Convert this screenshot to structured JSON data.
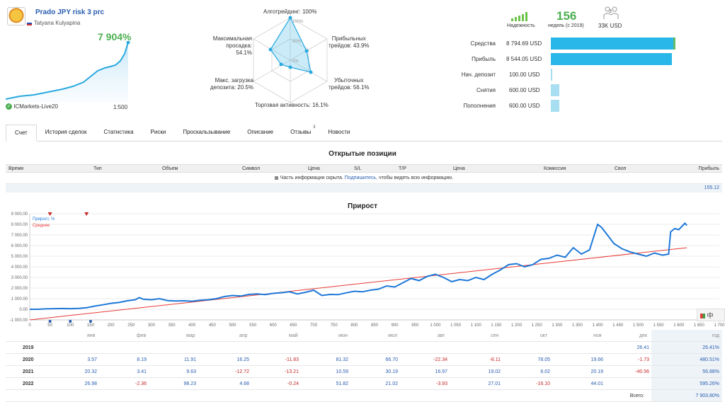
{
  "header": {
    "signal_name": "Prado JPY risk 3 prc",
    "author": "Tatyana Kulyapina",
    "growth": "7 904%",
    "broker": "ICMarkets-Live20",
    "leverage": "1:500"
  },
  "radar": {
    "algo": "Алготрейдинг: 100%",
    "max_drawdown": "Максимальная просадка: 54.1%",
    "max_drawdown_l1": "Максимальная",
    "max_drawdown_l2": "просадка: 54.1%",
    "profit_trades_l1": "Прибыльных",
    "profit_trades_l2": "трейдов: 43.9%",
    "deposit_load_l1": "Макс. загрузка",
    "deposit_load_l2": "депозита: 20.5%",
    "loss_trades_l1": "Убыточных",
    "loss_trades_l2": "трейдов: 56.1%",
    "activity": "Торговая активность: 16.1%",
    "tick_100": "100%",
    "tick_50": "50%",
    "tick_0": "0%"
  },
  "stats": {
    "reliability_label": "Надежность",
    "weeks_value": "156",
    "weeks_label": "недель (с 2019)",
    "subscribers_count": "3",
    "subscribers_label": "33K USD"
  },
  "balance_bars": [
    {
      "label": "Средства",
      "value": "8 794.69 USD",
      "fraction": 1.0
    },
    {
      "label": "Прибыль",
      "value": "8 544.05 USD",
      "fraction": 0.97
    },
    {
      "label": "Нач. депозит",
      "value": "100.00 USD",
      "fraction": 0.011
    },
    {
      "label": "Снятия",
      "value": "600.00 USD",
      "fraction": 0.068
    },
    {
      "label": "Пополнения",
      "value": "600.00 USD",
      "fraction": 0.068
    }
  ],
  "tabs": [
    "Счет",
    "История сделок",
    "Статистика",
    "Риски",
    "Проскальзывание",
    "Описание",
    "Отзывы",
    "Новости"
  ],
  "reviews_badge": "3",
  "open_positions": {
    "title": "Открытые позиции",
    "columns": [
      "Время",
      "Тип",
      "Объем",
      "Символ",
      "Цена",
      "S/L",
      "T/P",
      "Цена",
      "Комиссия",
      "Своп",
      "Прибыль"
    ],
    "hidden_prefix": "Часть информации скрыта.",
    "hidden_link": "Подпишитесь,",
    "hidden_suffix": "чтобы видеть всю информацию.",
    "total": "155.12"
  },
  "chart_title": "Прирост",
  "chart_data": {
    "type": "line",
    "title": "Прирост",
    "series": [
      {
        "name": "Прирост, %",
        "color": "#1e78d8"
      },
      {
        "name": "Среднее",
        "color": "#e53935"
      }
    ],
    "legend_labels": [
      "Прирост, %",
      "Среднее"
    ],
    "ylim": [
      -1000,
      9000
    ],
    "xlim": [
      0,
      1700
    ],
    "y_ticks": [
      "9 000.00",
      "8 000.00",
      "7 000.00",
      "6 000.00",
      "5 000.00",
      "4 000.00",
      "3 000.00",
      "2 000.00",
      "1 000.00",
      "0.00",
      "-1 000.00"
    ],
    "x_ticks": [
      "0",
      "50",
      "100",
      "150",
      "200",
      "250",
      "300",
      "350",
      "400",
      "450",
      "500",
      "550",
      "600",
      "650",
      "700",
      "750",
      "800",
      "850",
      "900",
      "950",
      "1 000",
      "1 050",
      "1 100",
      "1 150",
      "1 200",
      "1 250",
      "1 300",
      "1 350",
      "1 400",
      "1 450",
      "1 500",
      "1 550",
      "1 600",
      "1 650",
      "1 700"
    ],
    "growth_points": [
      [
        0,
        0
      ],
      [
        20,
        0
      ],
      [
        40,
        40
      ],
      [
        60,
        60
      ],
      [
        80,
        70
      ],
      [
        100,
        60
      ],
      [
        120,
        90
      ],
      [
        140,
        150
      ],
      [
        160,
        300
      ],
      [
        180,
        420
      ],
      [
        200,
        560
      ],
      [
        220,
        640
      ],
      [
        240,
        800
      ],
      [
        260,
        900
      ],
      [
        270,
        1100
      ],
      [
        280,
        950
      ],
      [
        300,
        900
      ],
      [
        320,
        1000
      ],
      [
        340,
        820
      ],
      [
        360,
        780
      ],
      [
        380,
        800
      ],
      [
        400,
        760
      ],
      [
        420,
        850
      ],
      [
        440,
        900
      ],
      [
        460,
        1000
      ],
      [
        480,
        1200
      ],
      [
        500,
        1300
      ],
      [
        520,
        1250
      ],
      [
        540,
        1400
      ],
      [
        560,
        1450
      ],
      [
        580,
        1380
      ],
      [
        600,
        1500
      ],
      [
        620,
        1560
      ],
      [
        640,
        1650
      ],
      [
        660,
        1450
      ],
      [
        680,
        1600
      ],
      [
        700,
        1800
      ],
      [
        720,
        1300
      ],
      [
        740,
        1400
      ],
      [
        760,
        1380
      ],
      [
        780,
        1550
      ],
      [
        800,
        1700
      ],
      [
        820,
        1650
      ],
      [
        840,
        1800
      ],
      [
        860,
        1900
      ],
      [
        880,
        2200
      ],
      [
        900,
        2100
      ],
      [
        920,
        2500
      ],
      [
        940,
        2900
      ],
      [
        960,
        2700
      ],
      [
        980,
        3100
      ],
      [
        1000,
        3300
      ],
      [
        1020,
        3000
      ],
      [
        1040,
        2600
      ],
      [
        1060,
        2800
      ],
      [
        1080,
        2700
      ],
      [
        1100,
        3000
      ],
      [
        1120,
        2800
      ],
      [
        1140,
        3300
      ],
      [
        1160,
        3700
      ],
      [
        1180,
        4200
      ],
      [
        1200,
        4300
      ],
      [
        1220,
        4000
      ],
      [
        1240,
        4200
      ],
      [
        1260,
        4700
      ],
      [
        1280,
        4800
      ],
      [
        1300,
        5100
      ],
      [
        1320,
        4900
      ],
      [
        1340,
        5800
      ],
      [
        1360,
        5200
      ],
      [
        1380,
        5600
      ],
      [
        1400,
        8000
      ],
      [
        1410,
        7700
      ],
      [
        1420,
        7200
      ],
      [
        1440,
        6200
      ],
      [
        1460,
        5700
      ],
      [
        1480,
        5400
      ],
      [
        1500,
        5200
      ],
      [
        1520,
        5000
      ],
      [
        1540,
        5300
      ],
      [
        1560,
        5100
      ],
      [
        1575,
        5200
      ],
      [
        1580,
        7300
      ],
      [
        1590,
        7600
      ],
      [
        1600,
        7500
      ],
      [
        1615,
        8100
      ],
      [
        1620,
        7900
      ]
    ],
    "average_points": [
      [
        0,
        -1000
      ],
      [
        1620,
        5800
      ]
    ]
  },
  "yearly": {
    "months": [
      "янв",
      "фев",
      "мар",
      "апр",
      "май",
      "июн",
      "июл",
      "авг",
      "сен",
      "окт",
      "ноя",
      "дек",
      "год"
    ],
    "rows": [
      {
        "year": "2019",
        "values": [
          "",
          "",
          "",
          "",
          "",
          "",
          "",
          "",
          "",
          "",
          "",
          "26.41"
        ],
        "total": "26.41%"
      },
      {
        "year": "2020",
        "values": [
          "3.57",
          "8.19",
          "11.91",
          "16.25",
          "-11.83",
          "81.32",
          "66.70",
          "-22.34",
          "-8.11",
          "78.05",
          "19.66",
          "-1.73"
        ],
        "total": "480.51%"
      },
      {
        "year": "2021",
        "values": [
          "20.32",
          "3.41",
          "9.63",
          "-12.72",
          "-13.21",
          "10.59",
          "30.19",
          "16.97",
          "19.02",
          "6.02",
          "20.19",
          "-40.56"
        ],
        "total": "56.88%"
      },
      {
        "year": "2022",
        "values": [
          "26.98",
          "-2.36",
          "98.23",
          "4.68",
          "-0.24",
          "51.82",
          "21.02",
          "-3.93",
          "27.01",
          "-16.10",
          "44.01",
          ""
        ],
        "total": "595.26%"
      }
    ],
    "grand_label": "Всего:",
    "grand_total": "7 903.80%"
  },
  "side_widget": "中"
}
